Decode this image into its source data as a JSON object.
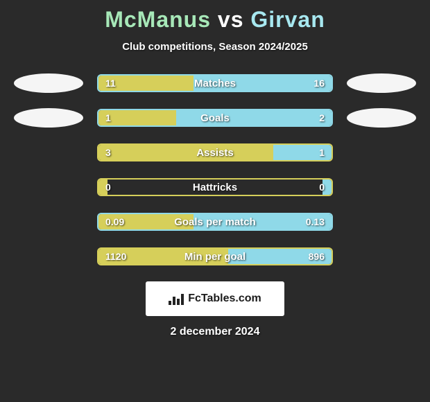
{
  "title": {
    "player1": "McManus",
    "vs": "vs",
    "player2": "Girvan"
  },
  "subtitle": "Club competitions, Season 2024/2025",
  "colors": {
    "player1_fill": "#d6cf5a",
    "player1_border": "#d6cf5a",
    "player2_fill": "#8fd9e8",
    "player2_border": "#8fd9e8",
    "player1_title": "#a7e8b8",
    "player2_title": "#a7e8f0"
  },
  "stats": [
    {
      "label": "Matches",
      "left_val": "11",
      "right_val": "16",
      "left_num": 11,
      "right_num": 16,
      "show_ovals": true
    },
    {
      "label": "Goals",
      "left_val": "1",
      "right_val": "2",
      "left_num": 1,
      "right_num": 2,
      "show_ovals": true
    },
    {
      "label": "Assists",
      "left_val": "3",
      "right_val": "1",
      "left_num": 3,
      "right_num": 1,
      "show_ovals": false
    },
    {
      "label": "Hattricks",
      "left_val": "0",
      "right_val": "0",
      "left_num": 0,
      "right_num": 0,
      "show_ovals": false
    },
    {
      "label": "Goals per match",
      "left_val": "0.09",
      "right_val": "0.13",
      "left_num": 0.09,
      "right_num": 0.13,
      "show_ovals": false
    },
    {
      "label": "Min per goal",
      "left_val": "1120",
      "right_val": "896",
      "left_num": 1120,
      "right_num": 896,
      "show_ovals": false
    }
  ],
  "bar_fill_minor_pct": 4,
  "footer": {
    "brand": "FcTables.com",
    "date": "2 december 2024"
  }
}
